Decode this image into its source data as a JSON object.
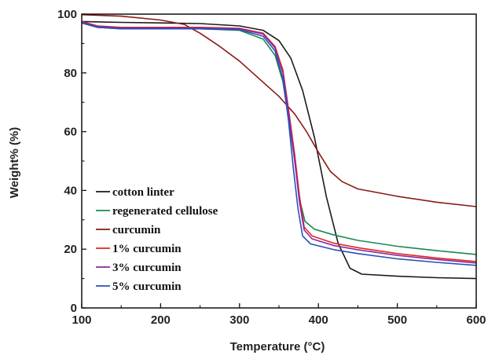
{
  "chart_data": {
    "type": "line",
    "title": "",
    "xlabel": "Temperature (°C)",
    "ylabel": "Weight% (%)",
    "xlim": [
      100,
      600
    ],
    "ylim": [
      0,
      100
    ],
    "x_ticks": [
      100,
      200,
      300,
      400,
      500,
      600
    ],
    "y_ticks": [
      0,
      20,
      40,
      60,
      80,
      100
    ],
    "grid": false,
    "legend_position": "bottom-left",
    "series": [
      {
        "name": "cotton linter",
        "color": "#1a1a1a",
        "points": [
          [
            100,
            97.5
          ],
          [
            150,
            97.2
          ],
          [
            200,
            97
          ],
          [
            250,
            96.8
          ],
          [
            300,
            96
          ],
          [
            330,
            94.5
          ],
          [
            350,
            91
          ],
          [
            365,
            85
          ],
          [
            380,
            74
          ],
          [
            395,
            58
          ],
          [
            410,
            38
          ],
          [
            425,
            22
          ],
          [
            440,
            13.5
          ],
          [
            455,
            11.5
          ],
          [
            500,
            10.8
          ],
          [
            550,
            10.3
          ],
          [
            600,
            10
          ]
        ]
      },
      {
        "name": "regenerated cellulose",
        "color": "#1a8a52",
        "points": [
          [
            100,
            97
          ],
          [
            120,
            95.5
          ],
          [
            150,
            95
          ],
          [
            200,
            95
          ],
          [
            250,
            95
          ],
          [
            300,
            94.5
          ],
          [
            330,
            91.5
          ],
          [
            345,
            86
          ],
          [
            355,
            77
          ],
          [
            362,
            65
          ],
          [
            370,
            50
          ],
          [
            377,
            36
          ],
          [
            383,
            29.5
          ],
          [
            395,
            26.8
          ],
          [
            420,
            24.8
          ],
          [
            450,
            23
          ],
          [
            500,
            21
          ],
          [
            550,
            19.5
          ],
          [
            600,
            18.2
          ]
        ]
      },
      {
        "name": "curcumin",
        "color": "#8a1a14",
        "points": [
          [
            100,
            99.8
          ],
          [
            150,
            99.3
          ],
          [
            200,
            98
          ],
          [
            230,
            96.5
          ],
          [
            250,
            93.5
          ],
          [
            275,
            89
          ],
          [
            300,
            84
          ],
          [
            325,
            78
          ],
          [
            350,
            72
          ],
          [
            370,
            66
          ],
          [
            385,
            60
          ],
          [
            400,
            53
          ],
          [
            415,
            46.5
          ],
          [
            430,
            43
          ],
          [
            450,
            40.5
          ],
          [
            500,
            38
          ],
          [
            550,
            36
          ],
          [
            600,
            34.5
          ]
        ]
      },
      {
        "name": "1% curcumin",
        "color": "#e02626",
        "points": [
          [
            100,
            97.5
          ],
          [
            120,
            96
          ],
          [
            150,
            95.5
          ],
          [
            200,
            95.5
          ],
          [
            250,
            95.5
          ],
          [
            300,
            95.2
          ],
          [
            330,
            93.5
          ],
          [
            345,
            89
          ],
          [
            355,
            81
          ],
          [
            362,
            68
          ],
          [
            370,
            52
          ],
          [
            376,
            38
          ],
          [
            382,
            27.5
          ],
          [
            392,
            24.5
          ],
          [
            420,
            22
          ],
          [
            450,
            20.5
          ],
          [
            500,
            18.5
          ],
          [
            550,
            17
          ],
          [
            600,
            15.8
          ]
        ]
      },
      {
        "name": "3% curcumin",
        "color": "#8a2a9a",
        "points": [
          [
            100,
            97.3
          ],
          [
            120,
            95.8
          ],
          [
            150,
            95.3
          ],
          [
            200,
            95.3
          ],
          [
            250,
            95.3
          ],
          [
            300,
            95
          ],
          [
            330,
            93.2
          ],
          [
            345,
            88.5
          ],
          [
            355,
            80
          ],
          [
            362,
            67
          ],
          [
            370,
            50
          ],
          [
            376,
            36
          ],
          [
            382,
            26.5
          ],
          [
            392,
            23.5
          ],
          [
            420,
            21.2
          ],
          [
            450,
            19.8
          ],
          [
            500,
            17.9
          ],
          [
            550,
            16.5
          ],
          [
            600,
            15.3
          ]
        ]
      },
      {
        "name": "5% curcumin",
        "color": "#2a50b8",
        "points": [
          [
            100,
            97
          ],
          [
            120,
            95.5
          ],
          [
            150,
            95
          ],
          [
            200,
            95
          ],
          [
            250,
            95
          ],
          [
            300,
            94.7
          ],
          [
            330,
            92.5
          ],
          [
            345,
            87.5
          ],
          [
            355,
            78
          ],
          [
            362,
            64
          ],
          [
            368,
            48
          ],
          [
            374,
            34
          ],
          [
            380,
            24.5
          ],
          [
            390,
            21.8
          ],
          [
            420,
            19.8
          ],
          [
            450,
            18.5
          ],
          [
            500,
            16.7
          ],
          [
            550,
            15.5
          ],
          [
            600,
            14.5
          ]
        ]
      }
    ]
  }
}
